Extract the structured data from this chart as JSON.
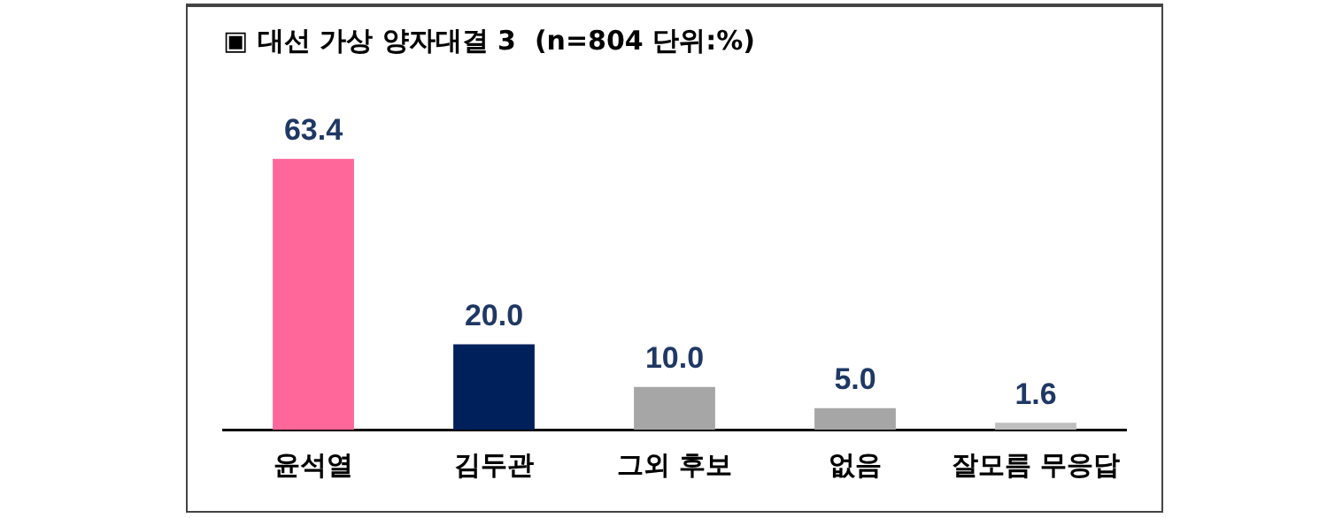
{
  "chart_data": {
    "type": "bar",
    "title": "▣ 대선 가상 양자대결 3  (n=804 단위:%)",
    "categories": [
      "윤석열",
      "김두관",
      "그외 후보",
      "없음",
      "잘모름 무응답"
    ],
    "values": [
      63.4,
      20.0,
      10.0,
      5.0,
      1.6
    ],
    "colors": [
      "#ff6699",
      "#00205b",
      "#a6a6a6",
      "#a6a6a6",
      "#bfbfbf"
    ],
    "value_labels": [
      "63.4",
      "20.0",
      "10.0",
      "5.0",
      "1.6"
    ],
    "grid": false,
    "legend": false
  }
}
